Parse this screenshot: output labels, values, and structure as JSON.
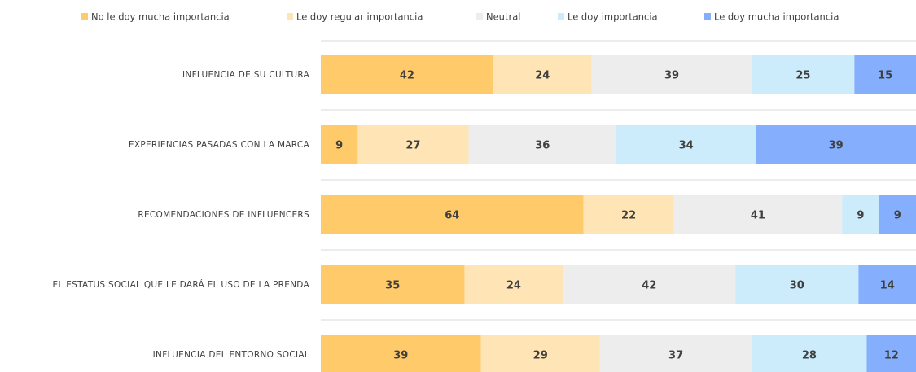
{
  "chart_data": {
    "type": "bar",
    "orientation": "horizontal",
    "stacked": true,
    "categories": [
      "INFLUENCIA DE SU CULTURA",
      "EXPERIENCIAS PASADAS CON LA MARCA",
      "RECOMENDACIONES DE INFLUENCERS",
      "EL ESTATUS SOCIAL QUE LE DARÁ EL USO DE LA PRENDA",
      "INFLUENCIA DEL ENTORNO SOCIAL"
    ],
    "series": [
      {
        "name": "No le doy mucha importancia",
        "color": "#ffca69",
        "values": [
          42,
          9,
          64,
          35,
          39
        ]
      },
      {
        "name": "Le doy regular importancia",
        "color": "#ffe4b5",
        "values": [
          24,
          27,
          22,
          24,
          29
        ]
      },
      {
        "name": "Neutral",
        "color": "#ededed",
        "values": [
          39,
          36,
          41,
          42,
          37
        ]
      },
      {
        "name": "Le doy importancia",
        "color": "#ccebfb",
        "values": [
          25,
          34,
          9,
          30,
          28
        ]
      },
      {
        "name": "Le doy mucha importancia",
        "color": "#85aefc",
        "values": [
          15,
          39,
          9,
          14,
          12
        ]
      }
    ],
    "legend": "top"
  }
}
